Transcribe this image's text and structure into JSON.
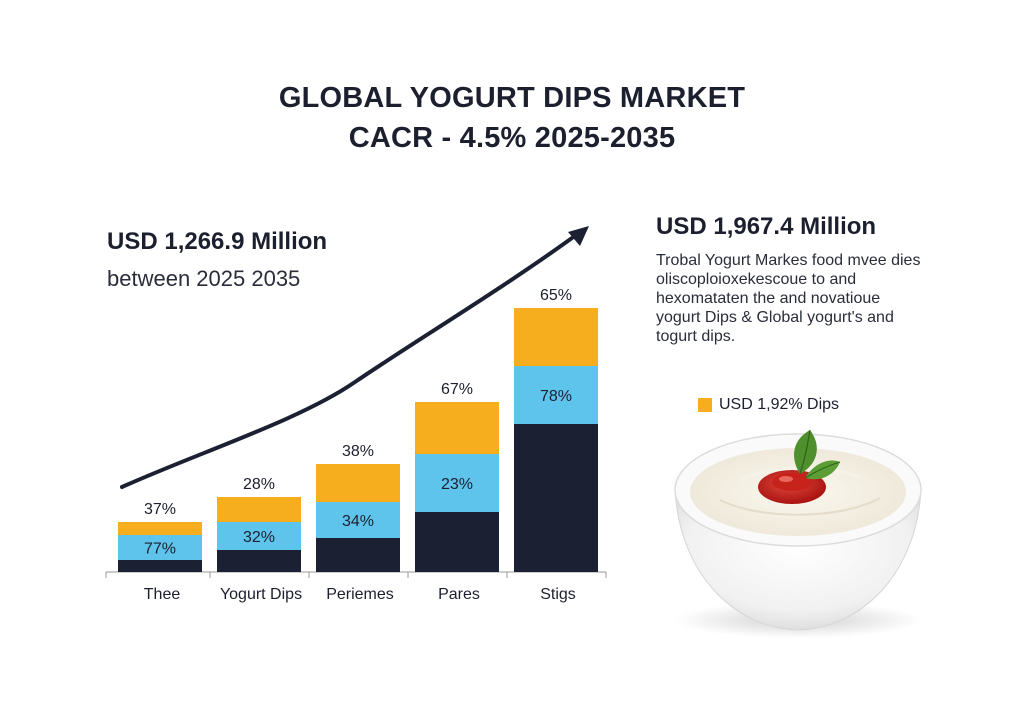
{
  "header": {
    "title_line1": "GLOBAL YOGURT DIPS MARKET",
    "title_line2": "CACR - 4.5% 2025-2035"
  },
  "left_kpi": {
    "value": "USD 1,266.9 Million",
    "subtitle": "between 2025 2035"
  },
  "right_kpi": {
    "value": "USD 1,967.4 Million",
    "description": "Trobal Yogurt Markes food mvee dies oliscoploioxekescoue to and hexomataten the and novatioue yogurt Dips & Global yogurt's and togurt dips."
  },
  "legend": {
    "label": "USD 1,92% Dips",
    "color": "#f6ad1e"
  },
  "image": {
    "icon": "yogurt-bowl-icon"
  },
  "chart_data": {
    "type": "bar",
    "stacked": true,
    "categories": [
      "Thee",
      "Yogurt Dips",
      "Periemes",
      "Pares",
      "Stigs"
    ],
    "series": [
      {
        "color": "#1c2033",
        "values": [
          12,
          22,
          34,
          60,
          148
        ]
      },
      {
        "color": "#5ec4ec",
        "values": [
          25,
          28,
          36,
          58,
          58
        ]
      },
      {
        "color": "#f6ad1e",
        "values": [
          13,
          25,
          38,
          52,
          58
        ]
      }
    ],
    "top_labels": [
      "37%",
      "28%",
      "38%",
      "67%",
      "65%"
    ],
    "mid_labels": [
      "77%",
      "32%",
      "34%",
      "23%",
      "78%"
    ],
    "trend_arrow": true,
    "colors": {
      "arrow": "#1c2033",
      "axis": "#9a9a9a"
    }
  }
}
